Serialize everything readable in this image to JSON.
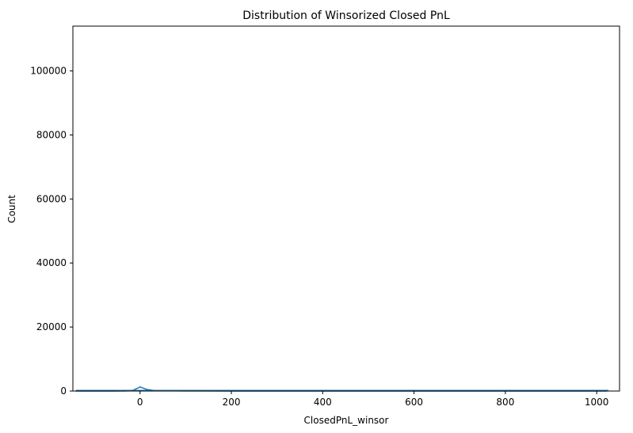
{
  "chart_data": {
    "type": "histogram",
    "title": "Distribution of Winsorized Closed PnL",
    "xlabel": "ClosedPnL_winsor",
    "ylabel": "Count",
    "xlim": [
      -147,
      1050
    ],
    "ylim": [
      0,
      114000
    ],
    "xticks": [
      0,
      200,
      400,
      600,
      800,
      1000
    ],
    "yticks": [
      0,
      20000,
      40000,
      60000,
      80000,
      100000
    ],
    "xtick_labels": [
      "0",
      "200",
      "400",
      "600",
      "800",
      "1000"
    ],
    "ytick_labels": [
      "0",
      "20000",
      "40000",
      "60000",
      "80000",
      "100000"
    ],
    "bar_color": "#1f77b4",
    "line_color": "#1f77b4",
    "grid": false,
    "bins": [
      {
        "x0": -140,
        "x1": 1025,
        "count": 0
      }
    ],
    "kde": [
      {
        "x": -140,
        "y": 0
      },
      {
        "x": -60,
        "y": 0
      },
      {
        "x": -30,
        "y": 30
      },
      {
        "x": -15,
        "y": 250
      },
      {
        "x": -5,
        "y": 900
      },
      {
        "x": 0,
        "y": 1300
      },
      {
        "x": 5,
        "y": 1000
      },
      {
        "x": 15,
        "y": 500
      },
      {
        "x": 30,
        "y": 200
      },
      {
        "x": 50,
        "y": 80
      },
      {
        "x": 100,
        "y": 30
      },
      {
        "x": 200,
        "y": 15
      },
      {
        "x": 400,
        "y": 10
      },
      {
        "x": 600,
        "y": 8
      },
      {
        "x": 800,
        "y": 8
      },
      {
        "x": 1000,
        "y": 10
      },
      {
        "x": 1022,
        "y": 10
      }
    ]
  }
}
